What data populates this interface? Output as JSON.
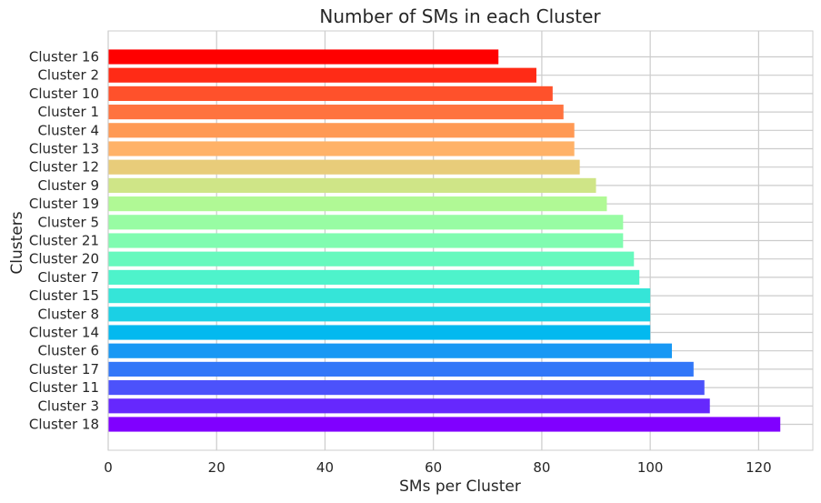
{
  "chart_data": {
    "type": "bar",
    "orientation": "horizontal",
    "title": "Number of SMs in each Cluster",
    "xlabel": "SMs per Cluster",
    "ylabel": "Clusters",
    "xlim": [
      0,
      130
    ],
    "xticks": [
      0,
      20,
      40,
      60,
      80,
      100,
      120
    ],
    "grid": true,
    "categories": [
      "Cluster 16",
      "Cluster 2",
      "Cluster 10",
      "Cluster 1",
      "Cluster 4",
      "Cluster 13",
      "Cluster 12",
      "Cluster 9",
      "Cluster 19",
      "Cluster 5",
      "Cluster 21",
      "Cluster 20",
      "Cluster 7",
      "Cluster 15",
      "Cluster 8",
      "Cluster 14",
      "Cluster 6",
      "Cluster 17",
      "Cluster 11",
      "Cluster 3",
      "Cluster 18"
    ],
    "values": [
      72,
      79,
      82,
      84,
      86,
      86,
      87,
      90,
      92,
      95,
      95,
      97,
      98,
      100,
      100,
      100,
      104,
      108,
      110,
      111,
      124
    ],
    "colors": [
      "#ff0000",
      "#ff2b16",
      "#ff512b",
      "#ff733f",
      "#ff9954",
      "#ffb268",
      "#e8cc7a",
      "#cfe587",
      "#b0f995",
      "#98fca3",
      "#80fcb0",
      "#67f9be",
      "#4ef3cb",
      "#35e5d8",
      "#1bd0e4",
      "#03b9ef",
      "#1898f4",
      "#3277f8",
      "#4c52fb",
      "#6628fd",
      "#8000ff"
    ]
  }
}
